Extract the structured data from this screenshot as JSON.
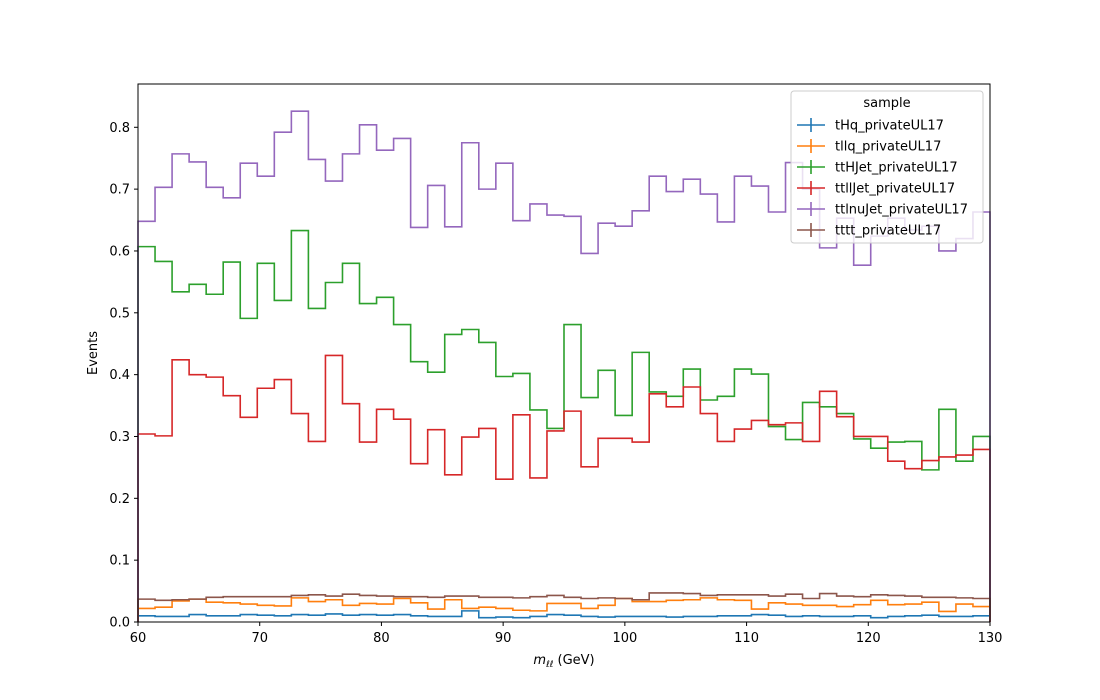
{
  "chart_data": {
    "type": "line",
    "drawstyle": "steps-hist",
    "xlabel": "m_ℓℓ (GeV)",
    "xlabel_base": "m",
    "xlabel_sub": "ℓℓ",
    "xlabel_unit": "(GeV)",
    "ylabel": "Events",
    "xlim": [
      60,
      130
    ],
    "ylim": [
      0,
      0.87
    ],
    "xticks": [
      "60",
      "70",
      "80",
      "90",
      "100",
      "110",
      "120",
      "130"
    ],
    "yticks": [
      "0.0",
      "0.1",
      "0.2",
      "0.3",
      "0.4",
      "0.5",
      "0.6",
      "0.7",
      "0.8"
    ],
    "grid": false,
    "legend": {
      "title": "sample",
      "position": "top-right"
    },
    "bin_edges_start": 60,
    "bin_width": 1.4,
    "series": [
      {
        "name": "tHq_privateUL17",
        "color": "#1f77b4",
        "values": [
          0.01,
          0.009,
          0.009,
          0.012,
          0.01,
          0.01,
          0.012,
          0.011,
          0.01,
          0.012,
          0.011,
          0.013,
          0.011,
          0.012,
          0.011,
          0.012,
          0.01,
          0.009,
          0.009,
          0.018,
          0.007,
          0.008,
          0.007,
          0.009,
          0.012,
          0.011,
          0.009,
          0.008,
          0.009,
          0.009,
          0.009,
          0.008,
          0.009,
          0.009,
          0.01,
          0.01,
          0.012,
          0.011,
          0.009,
          0.01,
          0.009,
          0.009,
          0.01,
          0.007,
          0.009,
          0.01,
          0.011,
          0.009,
          0.009,
          0.01
        ]
      },
      {
        "name": "tllq_privateUL17",
        "color": "#ff7f0e",
        "values": [
          0.022,
          0.024,
          0.034,
          0.037,
          0.032,
          0.031,
          0.029,
          0.027,
          0.026,
          0.039,
          0.033,
          0.036,
          0.027,
          0.03,
          0.029,
          0.038,
          0.031,
          0.021,
          0.036,
          0.022,
          0.024,
          0.022,
          0.019,
          0.018,
          0.03,
          0.03,
          0.022,
          0.027,
          0.038,
          0.033,
          0.033,
          0.035,
          0.036,
          0.039,
          0.036,
          0.035,
          0.021,
          0.031,
          0.029,
          0.027,
          0.027,
          0.025,
          0.028,
          0.035,
          0.028,
          0.029,
          0.032,
          0.017,
          0.029,
          0.025
        ]
      },
      {
        "name": "ttHJet_privateUL17",
        "color": "#2ca02c",
        "values": [
          0.607,
          0.583,
          0.534,
          0.546,
          0.53,
          0.582,
          0.491,
          0.58,
          0.52,
          0.633,
          0.507,
          0.549,
          0.58,
          0.515,
          0.525,
          0.481,
          0.421,
          0.404,
          0.465,
          0.473,
          0.452,
          0.397,
          0.402,
          0.343,
          0.313,
          0.481,
          0.363,
          0.407,
          0.334,
          0.436,
          0.372,
          0.365,
          0.409,
          0.359,
          0.365,
          0.409,
          0.401,
          0.316,
          0.295,
          0.355,
          0.348,
          0.337,
          0.296,
          0.281,
          0.291,
          0.292,
          0.246,
          0.344,
          0.26,
          0.3
        ]
      },
      {
        "name": "ttllJet_privateUL17",
        "color": "#d62728",
        "values": [
          0.304,
          0.301,
          0.424,
          0.4,
          0.396,
          0.366,
          0.331,
          0.378,
          0.392,
          0.337,
          0.292,
          0.431,
          0.353,
          0.291,
          0.344,
          0.328,
          0.256,
          0.311,
          0.238,
          0.299,
          0.313,
          0.231,
          0.335,
          0.233,
          0.309,
          0.341,
          0.251,
          0.297,
          0.297,
          0.291,
          0.369,
          0.348,
          0.38,
          0.337,
          0.292,
          0.312,
          0.326,
          0.319,
          0.322,
          0.292,
          0.373,
          0.332,
          0.3,
          0.3,
          0.26,
          0.248,
          0.261,
          0.267,
          0.27,
          0.279
        ]
      },
      {
        "name": "ttlnuJet_privateUL17",
        "color": "#9467bd",
        "values": [
          0.648,
          0.703,
          0.757,
          0.744,
          0.703,
          0.686,
          0.742,
          0.721,
          0.792,
          0.826,
          0.748,
          0.713,
          0.757,
          0.804,
          0.763,
          0.782,
          0.638,
          0.706,
          0.639,
          0.775,
          0.7,
          0.742,
          0.649,
          0.676,
          0.658,
          0.656,
          0.596,
          0.645,
          0.64,
          0.665,
          0.721,
          0.696,
          0.716,
          0.692,
          0.647,
          0.721,
          0.705,
          0.663,
          0.743,
          0.7,
          0.605,
          0.653,
          0.577,
          0.624,
          0.653,
          0.634,
          0.64,
          0.6,
          0.62,
          0.663
        ]
      },
      {
        "name": "tttt_privateUL17",
        "color": "#8c564b",
        "values": [
          0.037,
          0.035,
          0.036,
          0.037,
          0.04,
          0.041,
          0.041,
          0.041,
          0.041,
          0.043,
          0.044,
          0.042,
          0.045,
          0.043,
          0.042,
          0.041,
          0.041,
          0.04,
          0.042,
          0.042,
          0.04,
          0.04,
          0.039,
          0.041,
          0.043,
          0.04,
          0.038,
          0.039,
          0.038,
          0.036,
          0.047,
          0.047,
          0.046,
          0.043,
          0.044,
          0.044,
          0.044,
          0.042,
          0.045,
          0.038,
          0.046,
          0.042,
          0.041,
          0.044,
          0.043,
          0.042,
          0.04,
          0.04,
          0.039,
          0.038
        ]
      }
    ]
  }
}
